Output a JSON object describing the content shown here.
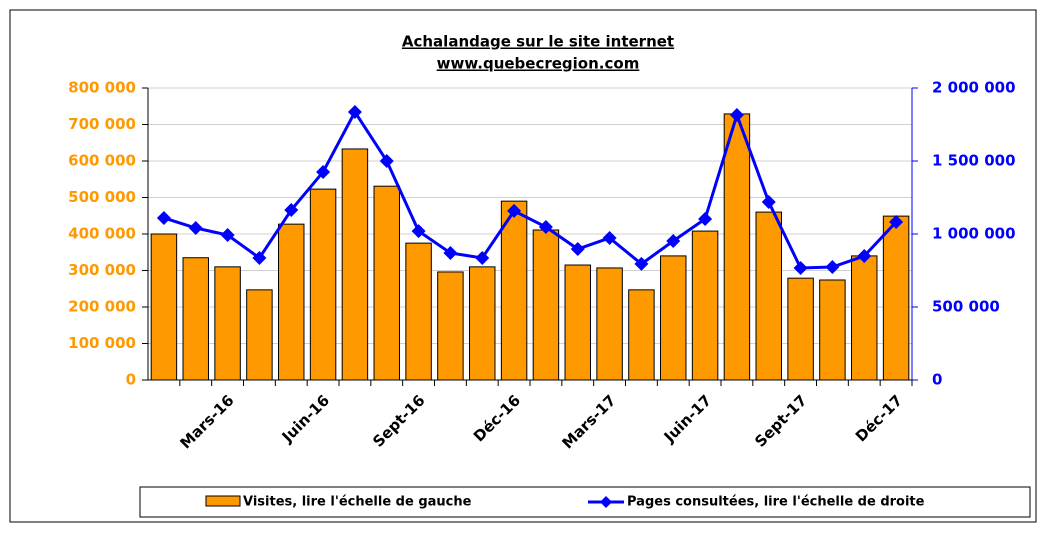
{
  "chart_data": {
    "type": "bar-line",
    "title": "Achalandage sur le site internet",
    "subtitle": "www.quebecregion.com",
    "categories": [
      null,
      null,
      "Mars-16",
      null,
      null,
      "Juin-16",
      null,
      null,
      "Sept-16",
      null,
      null,
      "Déc-16",
      null,
      null,
      "Mars-17",
      null,
      null,
      "Juin-17",
      null,
      null,
      "Sept-17",
      null,
      null,
      "Déc-17"
    ],
    "series": [
      {
        "name": "Visites, lire l'échelle de gauche",
        "type": "bar",
        "color": "#ff9900",
        "axis": "y",
        "values": [
          400000,
          335000,
          310000,
          247000,
          427000,
          523000,
          633000,
          531000,
          375000,
          296000,
          310000,
          490000,
          411000,
          315000,
          307000,
          247000,
          340000,
          408000,
          729000,
          460000,
          279000,
          274000,
          340000,
          449000
        ]
      },
      {
        "name": "Pages consultées, lire l'échelle de droite",
        "type": "line",
        "color": "#0000ff",
        "axis": "y2",
        "values": [
          1110000,
          1041000,
          993000,
          836000,
          1164000,
          1425000,
          1836000,
          1500000,
          1020000,
          870000,
          836000,
          1158000,
          1048000,
          897000,
          973000,
          795000,
          952000,
          1103000,
          1815000,
          1219000,
          767000,
          774000,
          849000,
          1082000
        ]
      }
    ],
    "ylim": [
      0,
      800000
    ],
    "yticks": [
      0,
      {
        "value": 100000,
        "label": "100 000"
      },
      {
        "value": 200000,
        "label": "200 000"
      },
      {
        "value": 300000,
        "label": "300 000"
      },
      {
        "value": 400000,
        "label": "400 000"
      },
      {
        "value": 500000,
        "label": "500 000"
      },
      {
        "value": 600000,
        "label": "600 000"
      },
      {
        "value": 700000,
        "label": "700 000"
      },
      {
        "value": 800000,
        "label": "800 000"
      }
    ],
    "y2lim": [
      0,
      2000000
    ],
    "y2ticks": [
      0,
      {
        "value": 500000,
        "label": "500 000"
      },
      {
        "value": 1000000,
        "label": "1 000 000"
      },
      {
        "value": 1500000,
        "label": "1 500 000"
      },
      {
        "value": 2000000,
        "label": "2 000 000"
      }
    ],
    "grid": true,
    "legend": "bottom"
  }
}
